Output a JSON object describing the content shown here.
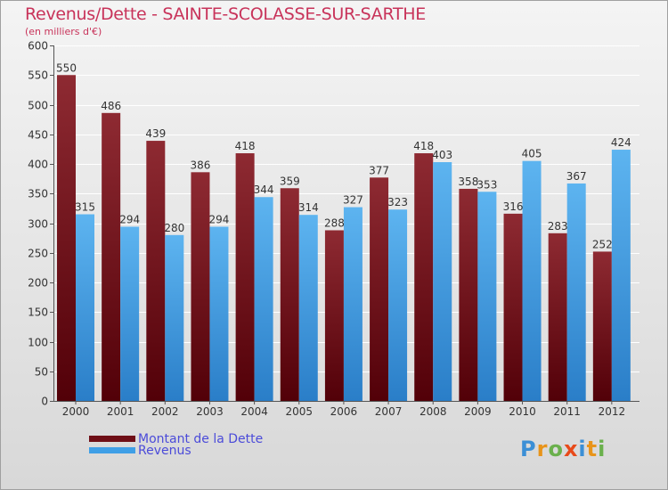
{
  "header": {
    "title": "Revenus/Dette - SAINTE-SCOLASSE-SUR-SARTHE",
    "subtitle": "(en milliers d'€)"
  },
  "chart_data": {
    "type": "bar",
    "title": "Revenus/Dette - SAINTE-SCOLASSE-SUR-SARTHE",
    "ylabel": "(en milliers d'€)",
    "xlabel": "",
    "categories": [
      "2000",
      "2001",
      "2002",
      "2003",
      "2004",
      "2005",
      "2006",
      "2007",
      "2008",
      "2009",
      "2010",
      "2011",
      "2012"
    ],
    "series": [
      {
        "name": "Montant de la Dette",
        "color": "#7a1a22",
        "values": [
          550,
          486,
          439,
          386,
          418,
          359,
          288,
          377,
          418,
          358,
          316,
          283,
          252
        ]
      },
      {
        "name": "Revenus",
        "color": "#3f9fe6",
        "values": [
          315,
          294,
          280,
          294,
          344,
          314,
          327,
          323,
          403,
          353,
          405,
          367,
          424
        ]
      }
    ],
    "ylim": [
      0,
      600
    ],
    "yticks": [
      0,
      50,
      100,
      150,
      200,
      250,
      300,
      350,
      400,
      450,
      500,
      550,
      600
    ],
    "grid": true,
    "legend_position": "bottom-left"
  },
  "legend": {
    "debt_label": "Montant de la Dette",
    "revenue_label": "Revenus"
  },
  "logo": {
    "letters": [
      "P",
      "r",
      "o",
      "x",
      "i",
      "t",
      "i"
    ],
    "colors": [
      "#3b8fd6",
      "#e8941a",
      "#6ab04c",
      "#e84a1a",
      "#3b8fd6",
      "#e8941a",
      "#6ab04c"
    ]
  }
}
